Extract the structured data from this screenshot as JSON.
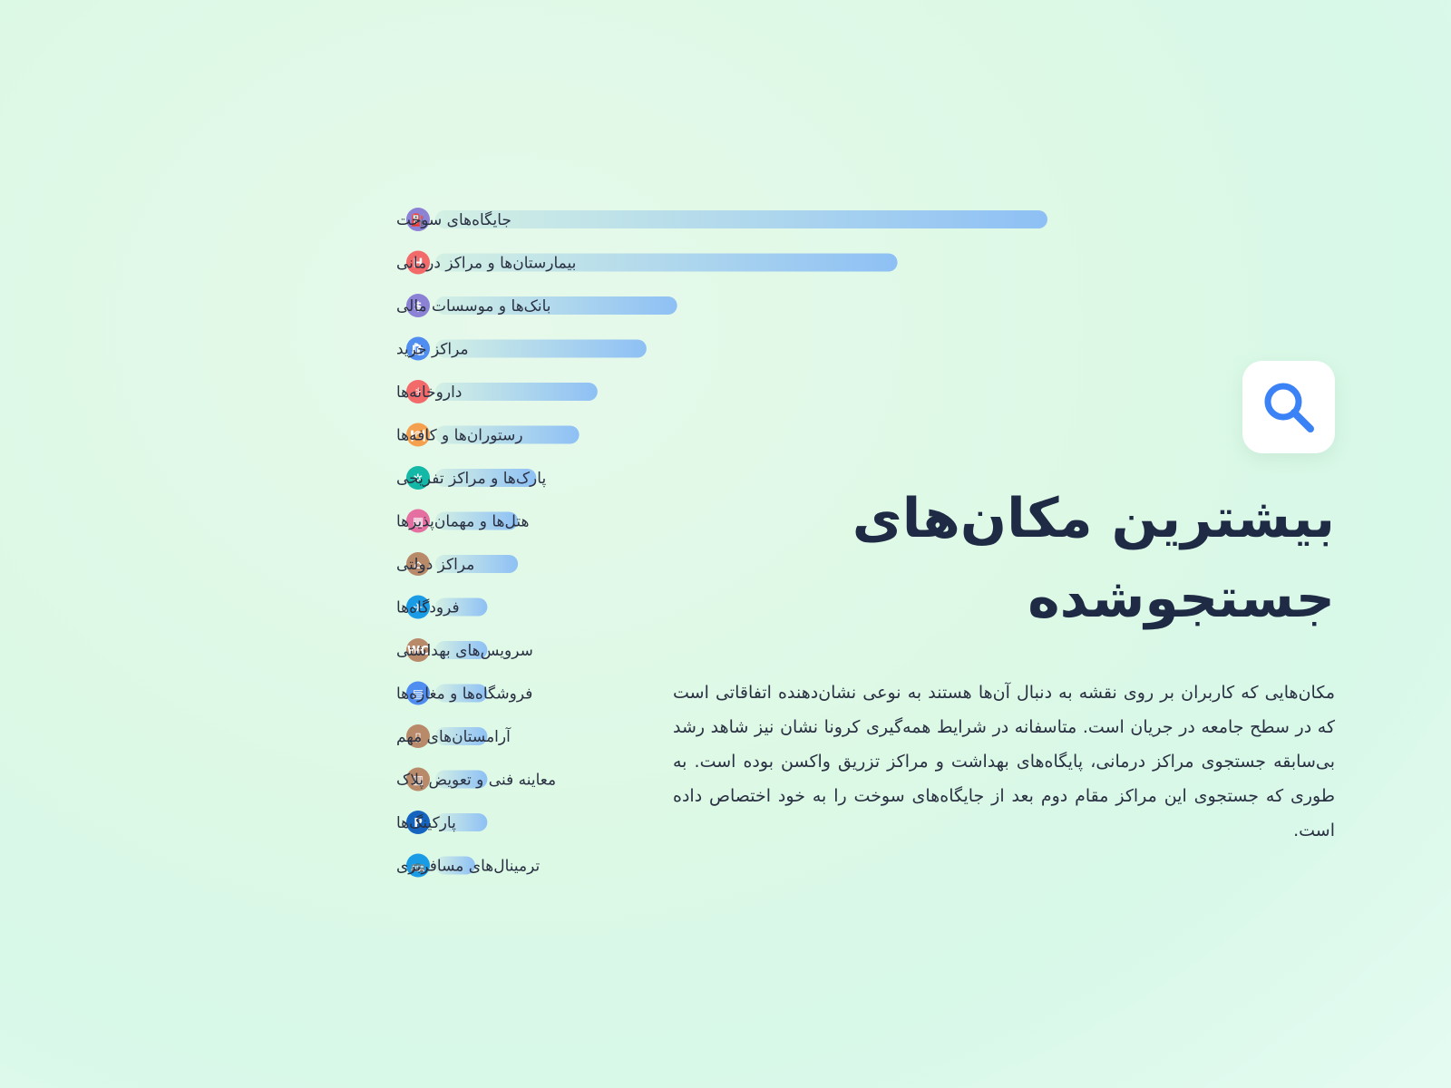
{
  "chart_data": {
    "type": "bar",
    "orientation": "horizontal",
    "categories": [
      "جایگاه‌های سوخت",
      "بیمارستان‌ها و مراکز درمانی",
      "بانک‌ها و موسسات مالی",
      "مراکز خرید",
      "داروخانه‌ها",
      "رستوران‌ها و کافه‌ها",
      "پارک‌ها و مراکز تفریحی",
      "هتل‌ها و مهمان‌پذیرها",
      "مراکز دولتی",
      "فرودگاه‌ها",
      "سرویس‌های بهداشتی",
      "فروشگاه‌ها و مغازه‌ها",
      "آرامستان‌های مهم",
      "معاینه فنی و تعویض پلاک",
      "پارکینگ‌ها",
      "ترمینال‌های مسافربری"
    ],
    "values": [
      100,
      75.5,
      39.5,
      34.5,
      26.5,
      23.5,
      16.5,
      13.5,
      13.5,
      8.5,
      8.5,
      8.5,
      8.5,
      8.5,
      8.5,
      6.5
    ],
    "xlim": [
      0,
      100
    ],
    "grid": false,
    "legend": "none",
    "bar_gradient": [
      "#d3f0e4",
      "#8ec0f5"
    ],
    "icons": [
      {
        "name": "fuel-pump-icon",
        "color": "#8b82d6",
        "glyph": "⛽"
      },
      {
        "name": "hospital-icon",
        "color": "#f26a6a",
        "glyph": "H"
      },
      {
        "name": "bank-icon",
        "color": "#8b82d6",
        "glyph": "$"
      },
      {
        "name": "shopping-bag-icon",
        "color": "#4f8ef0",
        "glyph": "🛍"
      },
      {
        "name": "pharmacy-icon",
        "color": "#f26a6a",
        "glyph": "⚕"
      },
      {
        "name": "restaurant-icon",
        "color": "#f5a04e",
        "glyph": "🍽"
      },
      {
        "name": "park-icon",
        "color": "#14b8a6",
        "glyph": "✲"
      },
      {
        "name": "hotel-icon",
        "color": "#e56fa0",
        "glyph": "▦"
      },
      {
        "name": "government-building-icon",
        "color": "#b88a6a",
        "glyph": "⌂"
      },
      {
        "name": "airplane-icon",
        "color": "#1a9be6",
        "glyph": "✈"
      },
      {
        "name": "restroom-icon",
        "color": "#b88a6a",
        "glyph": "WC"
      },
      {
        "name": "store-icon",
        "color": "#4f8ef0",
        "glyph": "▤"
      },
      {
        "name": "cemetery-icon",
        "color": "#b88a6a",
        "glyph": "▯"
      },
      {
        "name": "vehicle-inspection-icon",
        "color": "#b88a6a",
        "glyph": "▥"
      },
      {
        "name": "parking-icon",
        "color": "#1565c0",
        "glyph": "P"
      },
      {
        "name": "bus-terminal-icon",
        "color": "#1a9be6",
        "glyph": "🚌"
      }
    ]
  },
  "title_line_1": "بیشترین مکان‌های",
  "title_line_2": "جستجوشده",
  "search_icon": {
    "name": "magnifier-icon",
    "color": "#3b82f6"
  },
  "body_text": "مکان‌هایی که کاربران بر روی نقشه به دنبال آن‌ها هستند به نوعی نشان‌دهنده اتفاقاتی است که در سطح جامعه در جریان است. متاسفانه در شرایط همه‌گیری کرونا نشان نیز شاهد رشد بی‌سابقه جستجوی مراکز درمانی، پایگاه‌های بهداشت و مراکز تزریق واکسن بوده است. به طوری که جستجوی این مراکز مقام دوم بعد از جایگاه‌های سوخت را به خود اختصاص داده است."
}
